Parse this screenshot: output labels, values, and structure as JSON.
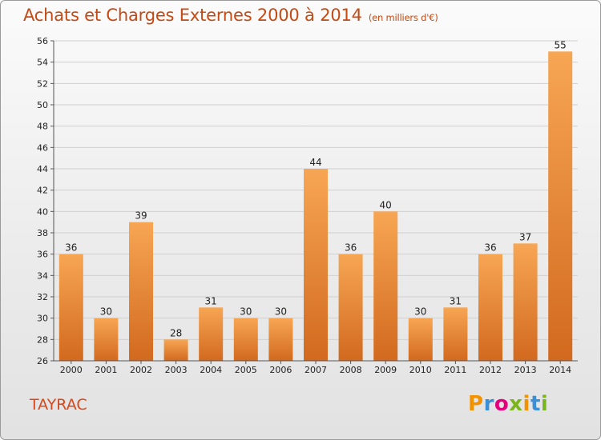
{
  "header": {
    "title": "Achats et Charges Externes 2000 à 2014",
    "unit": "(en milliers d'€)"
  },
  "footer": {
    "commune": "TAYRAC",
    "brand_letters": [
      "P",
      "r",
      "o",
      "x",
      "i",
      "t",
      "i"
    ],
    "brand_colors": [
      "#f39200",
      "#3b8fd6",
      "#e4007c",
      "#7ab51d",
      "#f39200",
      "#3b8fd6",
      "#7ab51d"
    ]
  },
  "colors": {
    "bar_light": "#f7a654",
    "bar_dark": "#d2691e",
    "title": "#c44a14"
  },
  "chart_data": {
    "type": "bar",
    "title": "Achats et Charges Externes 2000 à 2014",
    "categories": [
      "2000",
      "2001",
      "2002",
      "2003",
      "2004",
      "2005",
      "2006",
      "2007",
      "2008",
      "2009",
      "2010",
      "2011",
      "2012",
      "2013",
      "2014"
    ],
    "values": [
      36,
      30,
      39,
      28,
      31,
      30,
      30,
      44,
      36,
      40,
      30,
      31,
      36,
      37,
      55
    ],
    "ylim": [
      26,
      56
    ],
    "yticks": [
      26,
      28,
      30,
      32,
      34,
      36,
      38,
      40,
      42,
      44,
      46,
      48,
      50,
      52,
      54,
      56
    ],
    "grid": true,
    "xlabel": "",
    "ylabel": ""
  }
}
